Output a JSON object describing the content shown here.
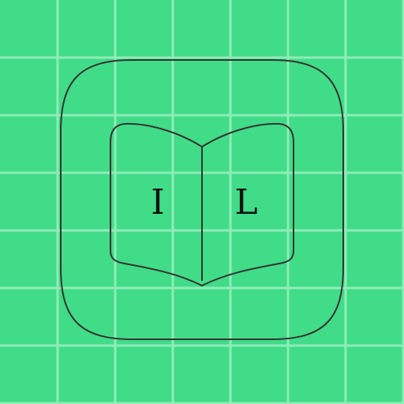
{
  "colors": {
    "background": "#41dc87",
    "grid": "#8fecb8",
    "outline": "#333333",
    "text": "#111111"
  },
  "icon": {
    "left_letter": "I",
    "right_letter": "L"
  }
}
